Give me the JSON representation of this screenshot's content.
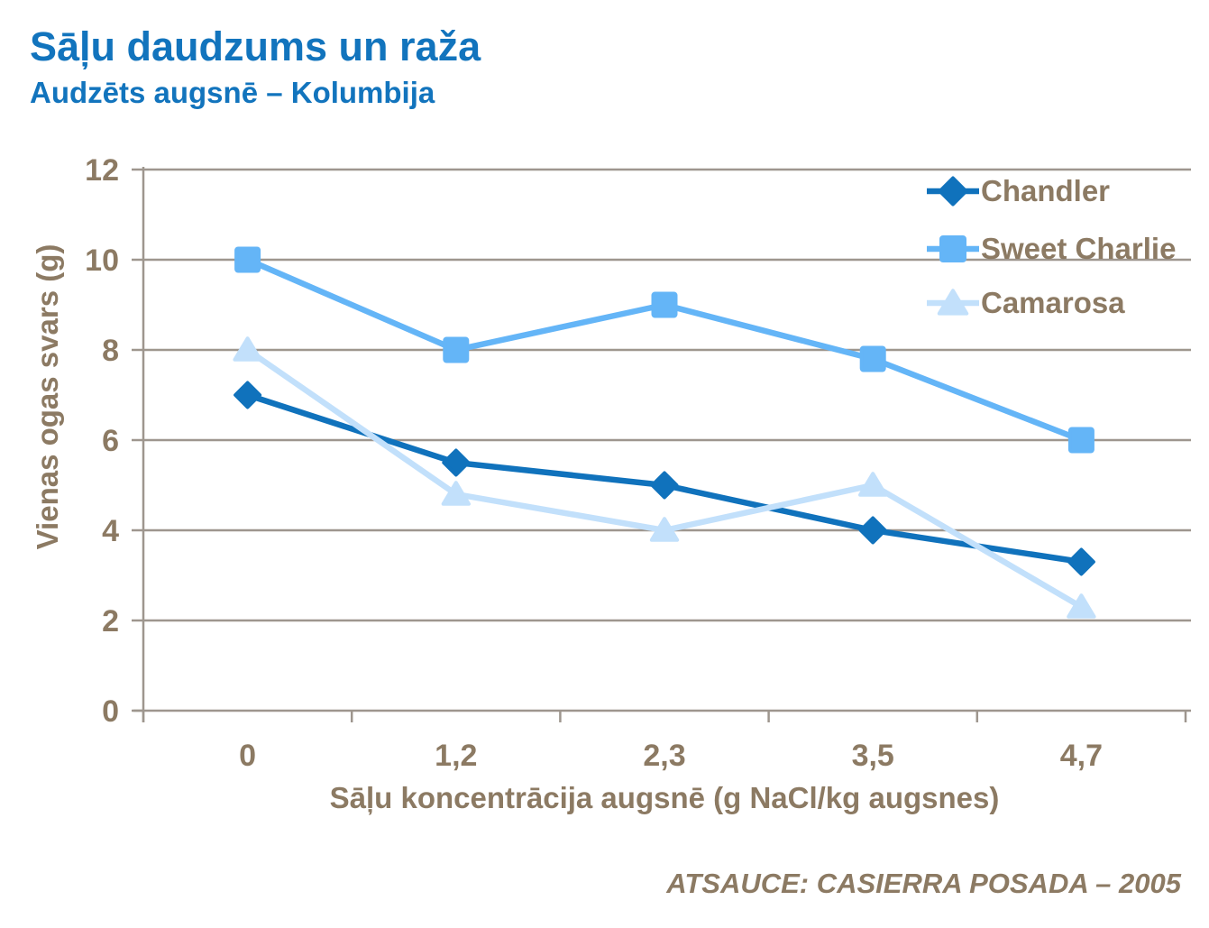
{
  "source_note": "ATSAUCE: CASIERRA POSADA – 2005",
  "colors": {
    "title_blue": "#1274BD",
    "axis_text": "#8C7A63",
    "gridline": "#9E968E",
    "background": "#FFFFFF"
  },
  "chart_data": {
    "type": "line",
    "title": "Sāļu daudzums un raža",
    "subtitle": "Audzēts augsnē – Kolumbija",
    "x_categories": [
      "0",
      "1,2",
      "2,3",
      "3,5",
      "4,7"
    ],
    "xlabel": "Sāļu koncentrācija augsnē (g NaCl/kg augsnes)",
    "ylabel": "Vienas ogas svars (g)",
    "ylim": [
      0,
      12
    ],
    "yticks": [
      0,
      2,
      4,
      6,
      8,
      10,
      12
    ],
    "grid": true,
    "legend_position": "top-right-inside",
    "series": [
      {
        "name": "Chandler",
        "marker": "diamond",
        "color": "#1072BC",
        "values": [
          7,
          5.5,
          5,
          4,
          3.3
        ]
      },
      {
        "name": "Sweet Charlie",
        "marker": "square",
        "color": "#64B5F7",
        "values": [
          10,
          8,
          9,
          7.8,
          6
        ]
      },
      {
        "name": "Camarosa",
        "marker": "triangle",
        "color": "#C2E0FB",
        "values": [
          8,
          4.8,
          4,
          5,
          2.3
        ]
      }
    ]
  }
}
